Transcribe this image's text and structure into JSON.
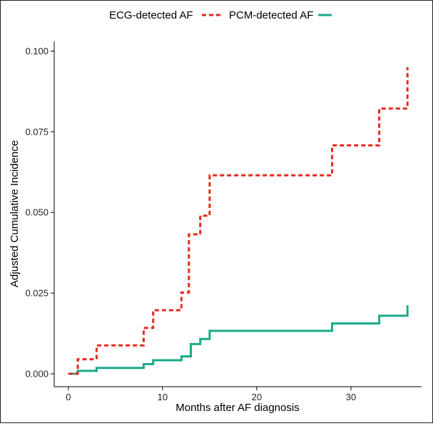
{
  "chart_data": {
    "type": "line",
    "title": "",
    "xlabel": "Months after AF diagnosis",
    "ylabel": "Adjusted Cumulative Incidence",
    "xlim": [
      -1.5,
      37.5
    ],
    "ylim": [
      -0.004,
      0.103
    ],
    "x_ticks": [
      0,
      10,
      20,
      30
    ],
    "y_ticks": [
      0.0,
      0.025,
      0.05,
      0.075,
      0.1
    ],
    "y_tick_labels": [
      "0.000",
      "0.025",
      "0.050",
      "0.075",
      "0.100"
    ],
    "legend_position": "top",
    "grid": false,
    "series": [
      {
        "name": "ECG-detected AF",
        "style": "dashed",
        "color": "#e8281e",
        "points": [
          [
            0,
            0.0
          ],
          [
            1,
            0.0
          ],
          [
            1,
            0.0045
          ],
          [
            3,
            0.0045
          ],
          [
            3,
            0.0088
          ],
          [
            8,
            0.0088
          ],
          [
            8,
            0.0142
          ],
          [
            9,
            0.0142
          ],
          [
            9,
            0.0197
          ],
          [
            12,
            0.0197
          ],
          [
            12,
            0.0252
          ],
          [
            12.8,
            0.0252
          ],
          [
            12.8,
            0.0432
          ],
          [
            14,
            0.0432
          ],
          [
            14,
            0.049
          ],
          [
            15,
            0.049
          ],
          [
            15,
            0.0615
          ],
          [
            28,
            0.0615
          ],
          [
            28,
            0.0708
          ],
          [
            33,
            0.0708
          ],
          [
            33,
            0.0822
          ],
          [
            36,
            0.0822
          ],
          [
            36,
            0.095
          ]
        ]
      },
      {
        "name": "PCM-detected AF",
        "style": "solid",
        "color": "#1aab8a",
        "points": [
          [
            0,
            0.0
          ],
          [
            1,
            0.0
          ],
          [
            1,
            0.0009
          ],
          [
            3,
            0.0009
          ],
          [
            3,
            0.0018
          ],
          [
            8,
            0.0018
          ],
          [
            8,
            0.003
          ],
          [
            9,
            0.003
          ],
          [
            9,
            0.0042
          ],
          [
            12,
            0.0042
          ],
          [
            12,
            0.0054
          ],
          [
            13,
            0.0054
          ],
          [
            13,
            0.0092
          ],
          [
            14,
            0.0092
          ],
          [
            14,
            0.0108
          ],
          [
            15,
            0.0108
          ],
          [
            15,
            0.0133
          ],
          [
            28,
            0.0133
          ],
          [
            28,
            0.0156
          ],
          [
            33,
            0.0156
          ],
          [
            33,
            0.018
          ],
          [
            36,
            0.018
          ],
          [
            36,
            0.0212
          ]
        ]
      }
    ]
  }
}
